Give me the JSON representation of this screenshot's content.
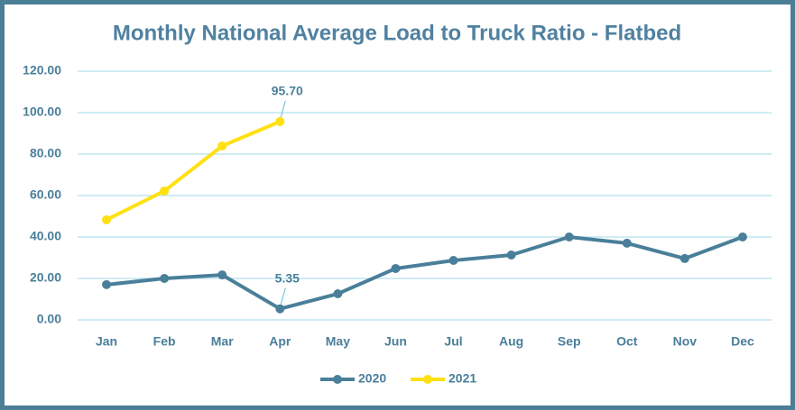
{
  "chart_data": {
    "type": "line",
    "title": "Monthly National Average Load to Truck Ratio - Flatbed",
    "categories": [
      "Jan",
      "Feb",
      "Mar",
      "Apr",
      "May",
      "Jun",
      "Jul",
      "Aug",
      "Sep",
      "Oct",
      "Nov",
      "Dec"
    ],
    "series": [
      {
        "name": "2020",
        "color": "#4a7f9a",
        "values": [
          17.0,
          20.0,
          21.7,
          5.35,
          12.6,
          24.8,
          28.7,
          31.3,
          40.0,
          37.0,
          29.6,
          40.0
        ],
        "value_labels": [
          null,
          null,
          null,
          "5.35",
          null,
          null,
          null,
          null,
          null,
          null,
          null,
          null
        ]
      },
      {
        "name": "2021",
        "color": "#ffe012",
        "values": [
          48.3,
          62.2,
          83.9,
          95.7,
          null,
          null,
          null,
          null,
          null,
          null,
          null,
          null
        ],
        "value_labels": [
          null,
          null,
          null,
          "95.70",
          null,
          null,
          null,
          null,
          null,
          null,
          null,
          null
        ]
      }
    ],
    "ylim": [
      0,
      120
    ],
    "yticks": [
      {
        "value": 0,
        "label": "0.00"
      },
      {
        "value": 20,
        "label": "20.00"
      },
      {
        "value": 40,
        "label": "40.00"
      },
      {
        "value": 60,
        "label": "60.00"
      },
      {
        "value": 80,
        "label": "80.00"
      },
      {
        "value": 100,
        "label": "100.00"
      },
      {
        "value": 120,
        "label": "120.00"
      }
    ],
    "grid": true,
    "legend": "bottom"
  }
}
